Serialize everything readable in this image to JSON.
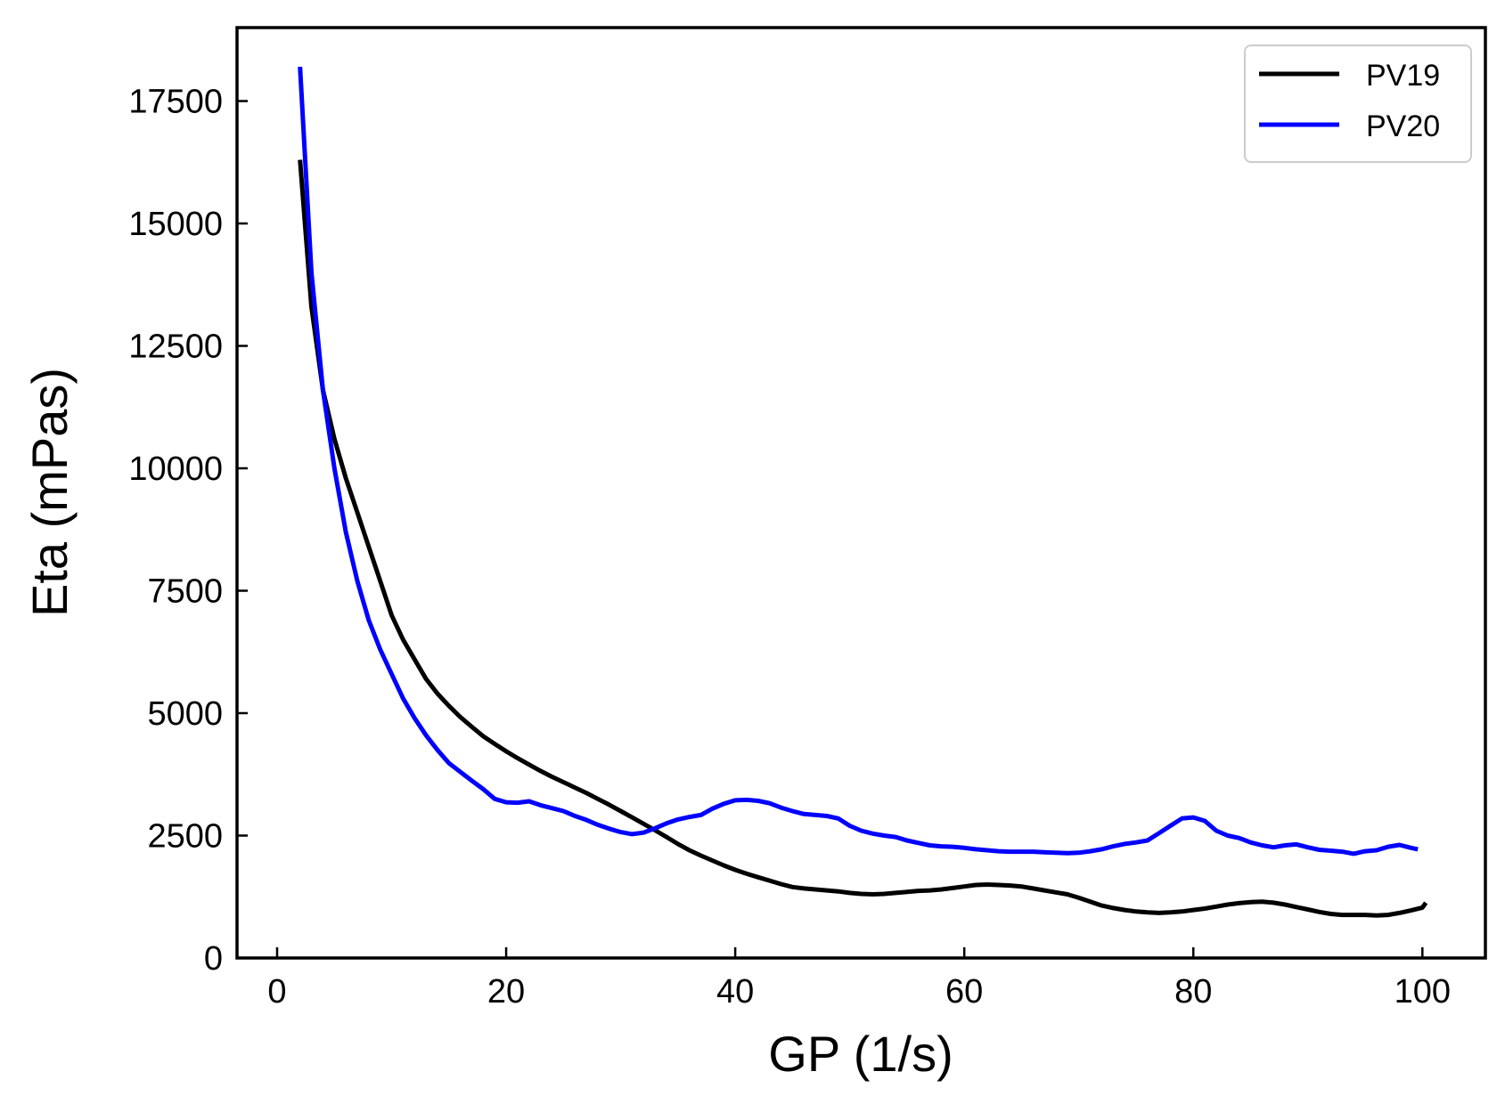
{
  "chart_data": {
    "type": "line",
    "xlabel": "GP (1/s)",
    "ylabel": "Eta (mPas)",
    "xlim": [
      -3.5,
      105.5
    ],
    "ylim": [
      0,
      19000
    ],
    "x_ticks": [
      0,
      20,
      40,
      60,
      80,
      100
    ],
    "y_ticks": [
      0,
      2500,
      5000,
      7500,
      10000,
      12500,
      15000,
      17500
    ],
    "grid": false,
    "legend_position": "top-right",
    "series": [
      {
        "name": "PV19",
        "color": "#000000",
        "points": [
          [
            2,
            16300
          ],
          [
            3,
            13300
          ],
          [
            4,
            11600
          ],
          [
            5,
            10600
          ],
          [
            6,
            9800
          ],
          [
            7,
            9100
          ],
          [
            8,
            8400
          ],
          [
            9,
            7700
          ],
          [
            10,
            7000
          ],
          [
            11,
            6500
          ],
          [
            12,
            6100
          ],
          [
            13,
            5700
          ],
          [
            14,
            5400
          ],
          [
            15,
            5150
          ],
          [
            16,
            4920
          ],
          [
            17,
            4720
          ],
          [
            18,
            4530
          ],
          [
            19,
            4370
          ],
          [
            20,
            4220
          ],
          [
            21,
            4080
          ],
          [
            22,
            3950
          ],
          [
            23,
            3820
          ],
          [
            24,
            3700
          ],
          [
            25,
            3590
          ],
          [
            26,
            3480
          ],
          [
            27,
            3370
          ],
          [
            28,
            3250
          ],
          [
            29,
            3130
          ],
          [
            30,
            3000
          ],
          [
            31,
            2870
          ],
          [
            32,
            2740
          ],
          [
            33,
            2610
          ],
          [
            34,
            2470
          ],
          [
            35,
            2330
          ],
          [
            36,
            2200
          ],
          [
            37,
            2090
          ],
          [
            38,
            1990
          ],
          [
            39,
            1890
          ],
          [
            40,
            1800
          ],
          [
            41,
            1720
          ],
          [
            42,
            1650
          ],
          [
            43,
            1580
          ],
          [
            44,
            1510
          ],
          [
            45,
            1450
          ],
          [
            46,
            1420
          ],
          [
            47,
            1400
          ],
          [
            48,
            1380
          ],
          [
            49,
            1360
          ],
          [
            50,
            1330
          ],
          [
            51,
            1310
          ],
          [
            52,
            1300
          ],
          [
            53,
            1310
          ],
          [
            54,
            1330
          ],
          [
            55,
            1350
          ],
          [
            56,
            1370
          ],
          [
            57,
            1380
          ],
          [
            58,
            1400
          ],
          [
            59,
            1430
          ],
          [
            60,
            1460
          ],
          [
            61,
            1490
          ],
          [
            62,
            1500
          ],
          [
            63,
            1490
          ],
          [
            64,
            1480
          ],
          [
            65,
            1460
          ],
          [
            66,
            1420
          ],
          [
            67,
            1380
          ],
          [
            68,
            1340
          ],
          [
            69,
            1300
          ],
          [
            70,
            1230
          ],
          [
            71,
            1150
          ],
          [
            72,
            1070
          ],
          [
            73,
            1020
          ],
          [
            74,
            980
          ],
          [
            75,
            950
          ],
          [
            76,
            930
          ],
          [
            77,
            920
          ],
          [
            78,
            930
          ],
          [
            79,
            950
          ],
          [
            80,
            980
          ],
          [
            81,
            1010
          ],
          [
            82,
            1050
          ],
          [
            83,
            1090
          ],
          [
            84,
            1120
          ],
          [
            85,
            1140
          ],
          [
            86,
            1150
          ],
          [
            87,
            1130
          ],
          [
            88,
            1090
          ],
          [
            89,
            1040
          ],
          [
            90,
            990
          ],
          [
            91,
            940
          ],
          [
            92,
            900
          ],
          [
            93,
            880
          ],
          [
            94,
            880
          ],
          [
            95,
            880
          ],
          [
            96,
            870
          ],
          [
            97,
            880
          ],
          [
            98,
            920
          ],
          [
            99,
            970
          ],
          [
            100,
            1030
          ],
          [
            100.3,
            1130
          ]
        ]
      },
      {
        "name": "PV20",
        "color": "#0000ff",
        "points": [
          [
            2,
            18200
          ],
          [
            3,
            14000
          ],
          [
            4,
            11600
          ],
          [
            5,
            10000
          ],
          [
            6,
            8700
          ],
          [
            7,
            7700
          ],
          [
            8,
            6900
          ],
          [
            9,
            6300
          ],
          [
            10,
            5800
          ],
          [
            11,
            5300
          ],
          [
            12,
            4900
          ],
          [
            13,
            4550
          ],
          [
            14,
            4250
          ],
          [
            15,
            3980
          ],
          [
            16,
            3800
          ],
          [
            17,
            3620
          ],
          [
            18,
            3450
          ],
          [
            19,
            3250
          ],
          [
            20,
            3180
          ],
          [
            21,
            3170
          ],
          [
            22,
            3200
          ],
          [
            23,
            3120
          ],
          [
            24,
            3060
          ],
          [
            25,
            3000
          ],
          [
            26,
            2900
          ],
          [
            27,
            2820
          ],
          [
            28,
            2720
          ],
          [
            29,
            2640
          ],
          [
            30,
            2570
          ],
          [
            31,
            2530
          ],
          [
            32,
            2560
          ],
          [
            33,
            2650
          ],
          [
            34,
            2750
          ],
          [
            35,
            2830
          ],
          [
            36,
            2880
          ],
          [
            37,
            2920
          ],
          [
            38,
            3050
          ],
          [
            39,
            3150
          ],
          [
            40,
            3220
          ],
          [
            41,
            3230
          ],
          [
            42,
            3210
          ],
          [
            43,
            3160
          ],
          [
            44,
            3070
          ],
          [
            45,
            3000
          ],
          [
            46,
            2940
          ],
          [
            47,
            2920
          ],
          [
            48,
            2900
          ],
          [
            49,
            2850
          ],
          [
            50,
            2700
          ],
          [
            51,
            2600
          ],
          [
            52,
            2540
          ],
          [
            53,
            2500
          ],
          [
            54,
            2470
          ],
          [
            55,
            2400
          ],
          [
            56,
            2350
          ],
          [
            57,
            2300
          ],
          [
            58,
            2280
          ],
          [
            59,
            2270
          ],
          [
            60,
            2250
          ],
          [
            61,
            2220
          ],
          [
            62,
            2200
          ],
          [
            63,
            2180
          ],
          [
            64,
            2170
          ],
          [
            65,
            2170
          ],
          [
            66,
            2170
          ],
          [
            67,
            2160
          ],
          [
            68,
            2150
          ],
          [
            69,
            2140
          ],
          [
            70,
            2150
          ],
          [
            71,
            2180
          ],
          [
            72,
            2220
          ],
          [
            73,
            2280
          ],
          [
            74,
            2330
          ],
          [
            75,
            2360
          ],
          [
            76,
            2400
          ],
          [
            77,
            2550
          ],
          [
            78,
            2700
          ],
          [
            79,
            2850
          ],
          [
            80,
            2870
          ],
          [
            81,
            2800
          ],
          [
            82,
            2600
          ],
          [
            83,
            2500
          ],
          [
            84,
            2450
          ],
          [
            85,
            2360
          ],
          [
            86,
            2300
          ],
          [
            87,
            2260
          ],
          [
            88,
            2300
          ],
          [
            89,
            2320
          ],
          [
            90,
            2260
          ],
          [
            91,
            2210
          ],
          [
            92,
            2190
          ],
          [
            93,
            2170
          ],
          [
            94,
            2130
          ],
          [
            95,
            2180
          ],
          [
            96,
            2200
          ],
          [
            97,
            2270
          ],
          [
            98,
            2310
          ],
          [
            99,
            2250
          ],
          [
            99.6,
            2220
          ]
        ]
      }
    ]
  }
}
